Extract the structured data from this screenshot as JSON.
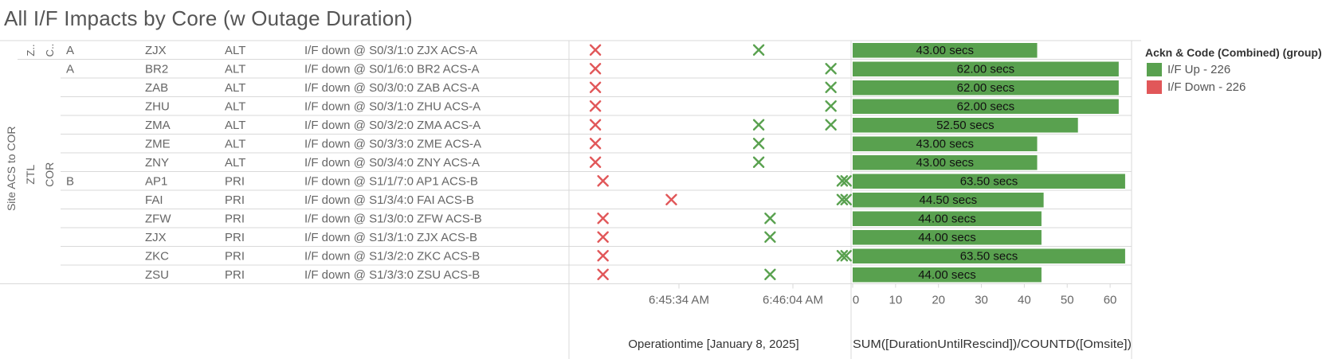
{
  "title": "All I/F Impacts by Core (w Outage Duration)",
  "colors": {
    "up": "#59a14f",
    "down": "#e15759",
    "bar": "#59a14f",
    "grid": "#d9d9d9",
    "text": "#666666"
  },
  "row_headers": {
    "site": "Site ACS to COR",
    "z": "Z..",
    "c": "C..",
    "ztl": "ZTL",
    "cor": "COR"
  },
  "legend": {
    "title": "Ackn & Code (Combined) (group)",
    "items": [
      {
        "label": "I/F Up - 226",
        "color": "#59a14f"
      },
      {
        "label": "I/F Down - 226",
        "color": "#e15759"
      }
    ]
  },
  "rows": [
    {
      "group": "A",
      "site": "ZJX",
      "type": "ALT",
      "desc": "I/F down @ S0/3/1:0 ZJX ACS-A",
      "value": 43.0,
      "bar_label": "43.00 secs"
    },
    {
      "group": "A",
      "site": "BR2",
      "type": "ALT",
      "desc": "I/F down @ S0/1/6:0 BR2 ACS-A",
      "value": 62.0,
      "bar_label": "62.00 secs"
    },
    {
      "group": "",
      "site": "ZAB",
      "type": "ALT",
      "desc": "I/F down @ S0/3/0:0 ZAB ACS-A",
      "value": 62.0,
      "bar_label": "62.00 secs"
    },
    {
      "group": "",
      "site": "ZHU",
      "type": "ALT",
      "desc": "I/F down @ S0/3/1:0 ZHU ACS-A",
      "value": 62.0,
      "bar_label": "62.00 secs"
    },
    {
      "group": "",
      "site": "ZMA",
      "type": "ALT",
      "desc": "I/F down @ S0/3/2:0 ZMA ACS-A",
      "value": 52.5,
      "bar_label": "52.50 secs"
    },
    {
      "group": "",
      "site": "ZME",
      "type": "ALT",
      "desc": "I/F down @ S0/3/3:0 ZME ACS-A",
      "value": 43.0,
      "bar_label": "43.00 secs"
    },
    {
      "group": "",
      "site": "ZNY",
      "type": "ALT",
      "desc": "I/F down @ S0/3/4:0 ZNY ACS-A",
      "value": 43.0,
      "bar_label": "43.00 secs"
    },
    {
      "group": "B",
      "site": "AP1",
      "type": "PRI",
      "desc": "I/F down @ S1/1/7:0 AP1 ACS-B",
      "value": 63.5,
      "bar_label": "63.50 secs"
    },
    {
      "group": "",
      "site": "FAI",
      "type": "PRI",
      "desc": "I/F down @ S1/3/4:0 FAI ACS-B",
      "value": 44.5,
      "bar_label": "44.50 secs"
    },
    {
      "group": "",
      "site": "ZFW",
      "type": "PRI",
      "desc": "I/F down @ S1/3/0:0 ZFW ACS-B",
      "value": 44.0,
      "bar_label": "44.00 secs"
    },
    {
      "group": "",
      "site": "ZJX",
      "type": "PRI",
      "desc": "I/F down @ S1/3/1:0 ZJX ACS-B",
      "value": 44.0,
      "bar_label": "44.00 secs"
    },
    {
      "group": "",
      "site": "ZKC",
      "type": "PRI",
      "desc": "I/F down @ S1/3/2:0 ZKC ACS-B",
      "value": 63.5,
      "bar_label": "63.50 secs"
    },
    {
      "group": "",
      "site": "ZSU",
      "type": "PRI",
      "desc": "I/F down @ S1/3/3:0 ZSU ACS-B",
      "value": 44.0,
      "bar_label": "44.00 secs"
    }
  ],
  "chart_data": [
    {
      "type": "scatter",
      "xlabel": "Operationtime [January 8, 2025]",
      "x_ticks": [
        "6:45:34 AM",
        "6:46:04 AM"
      ],
      "series": [
        {
          "name": "I/F Down - 226",
          "points": [
            [
              "6:45:12 AM",
              0
            ],
            [
              "6:45:12 AM",
              1
            ],
            [
              "6:45:12 AM",
              2
            ],
            [
              "6:45:12 AM",
              3
            ],
            [
              "6:45:12 AM",
              4
            ],
            [
              "6:45:12 AM",
              5
            ],
            [
              "6:45:12 AM",
              6
            ],
            [
              "6:45:14 AM",
              7
            ],
            [
              "6:45:32 AM",
              8
            ],
            [
              "6:45:14 AM",
              9
            ],
            [
              "6:45:14 AM",
              10
            ],
            [
              "6:45:14 AM",
              11
            ],
            [
              "6:45:14 AM",
              12
            ]
          ]
        },
        {
          "name": "I/F Up - 226",
          "points": [
            [
              "6:45:55 AM",
              0
            ],
            [
              "6:46:14 AM",
              1
            ],
            [
              "6:46:14 AM",
              2
            ],
            [
              "6:46:14 AM",
              3
            ],
            [
              "6:45:55 AM",
              4
            ],
            [
              "6:46:14 AM",
              4
            ],
            [
              "6:45:55 AM",
              5
            ],
            [
              "6:45:55 AM",
              6
            ],
            [
              "6:46:17 AM",
              7
            ],
            [
              "6:46:18 AM",
              7
            ],
            [
              "6:46:17 AM",
              8
            ],
            [
              "6:46:18 AM",
              8
            ],
            [
              "6:45:58 AM",
              9
            ],
            [
              "6:45:58 AM",
              10
            ],
            [
              "6:46:17 AM",
              11
            ],
            [
              "6:46:18 AM",
              11
            ],
            [
              "6:45:58 AM",
              12
            ]
          ]
        }
      ]
    },
    {
      "type": "bar",
      "orientation": "horizontal",
      "xlabel": "SUM([DurationUntilRescind])/COUNTD([Omsite])",
      "xlim": [
        0,
        65
      ],
      "x_ticks": [
        0,
        10,
        20,
        30,
        40,
        50,
        60
      ],
      "categories": [
        "ZJX",
        "BR2",
        "ZAB",
        "ZHU",
        "ZMA",
        "ZME",
        "ZNY",
        "AP1",
        "FAI",
        "ZFW",
        "ZJX",
        "ZKC",
        "ZSU"
      ],
      "values": [
        43.0,
        62.0,
        62.0,
        62.0,
        52.5,
        43.0,
        43.0,
        63.5,
        44.5,
        44.0,
        44.0,
        63.5,
        44.0
      ],
      "data_labels": [
        "43.00 secs",
        "62.00 secs",
        "62.00 secs",
        "62.00 secs",
        "52.50 secs",
        "43.00 secs",
        "43.00 secs",
        "63.50 secs",
        "44.50 secs",
        "44.00 secs",
        "44.00 secs",
        "63.50 secs",
        "44.00 secs"
      ]
    }
  ]
}
